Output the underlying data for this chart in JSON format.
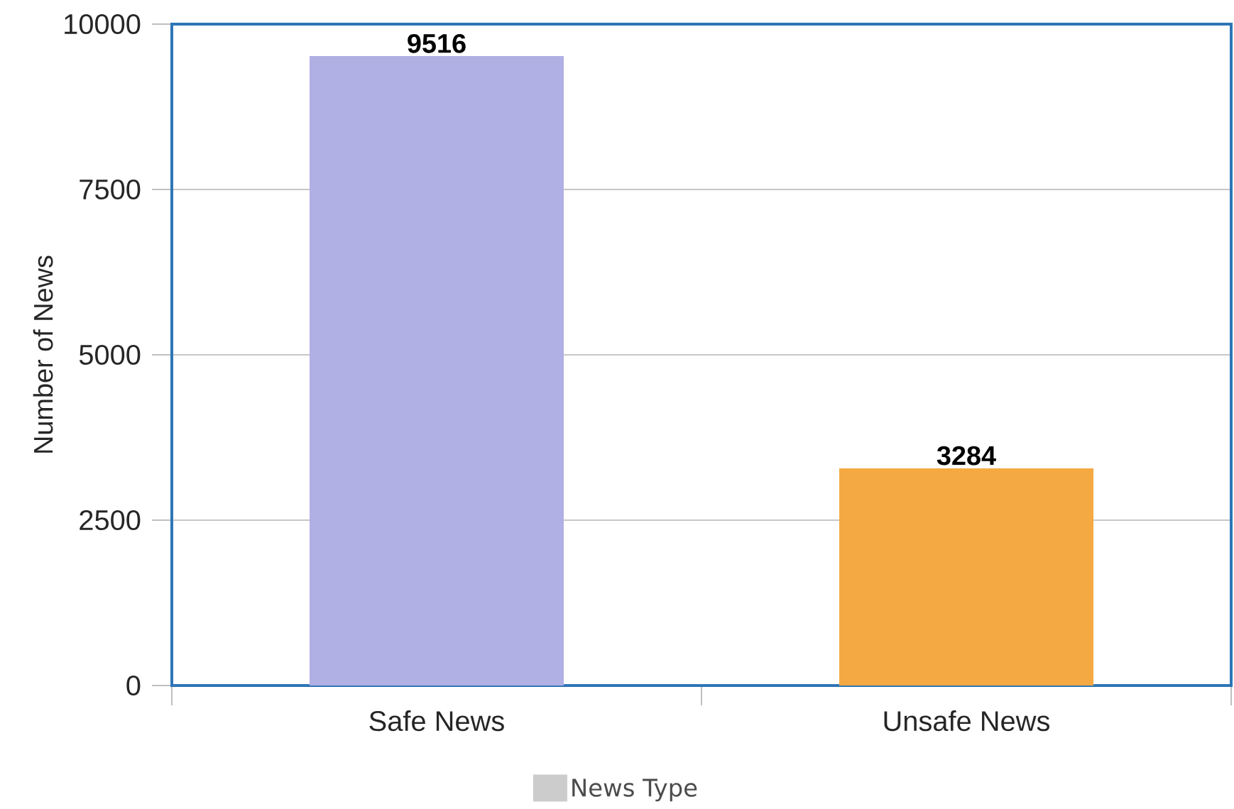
{
  "chart_data": {
    "type": "bar",
    "categories": [
      "Safe News",
      "Unsafe News"
    ],
    "series": [
      {
        "name": "News Type",
        "color": "#cccccc",
        "colors": [
          "#b0b0e4",
          "#f5a942"
        ],
        "values": [
          9516,
          3284
        ]
      }
    ],
    "ylabel": "Number of News",
    "ylim": [
      0,
      10000
    ],
    "yticks": [
      0,
      2500,
      5000,
      7500,
      10000
    ],
    "grid": "y",
    "legend": "bottom",
    "data_labels": true
  }
}
